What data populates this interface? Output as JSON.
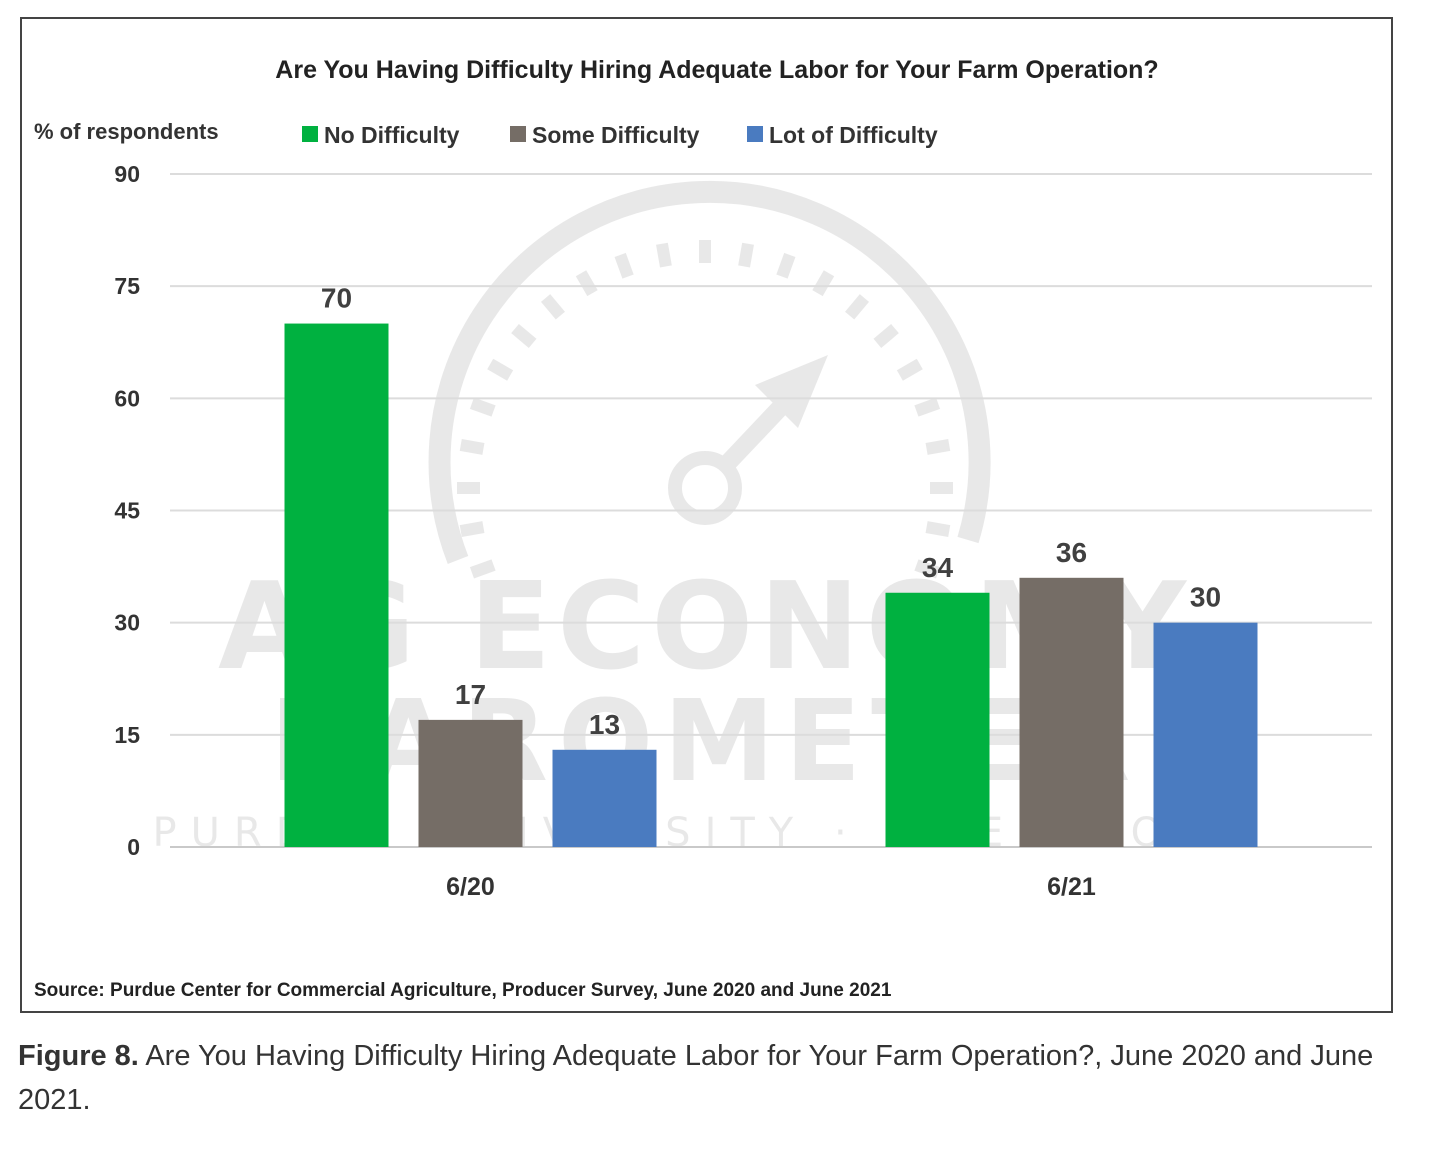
{
  "chart_data": {
    "type": "bar",
    "title": "Are You Having Difficulty Hiring Adequate Labor for Your Farm Operation?",
    "ylabel": "% of respondents",
    "xlabel": "",
    "categories": [
      "6/20",
      "6/21"
    ],
    "series": [
      {
        "name": "No Difficulty",
        "values": [
          70,
          34
        ],
        "color": "#00b140"
      },
      {
        "name": "Some Difficulty",
        "values": [
          17,
          36
        ],
        "color": "#756d66"
      },
      {
        "name": "Lot of Difficulty",
        "values": [
          13,
          30
        ],
        "color": "#4a7bc0"
      }
    ],
    "ylim": [
      0,
      90
    ],
    "yticks": [
      0,
      15,
      30,
      45,
      60,
      75,
      90
    ],
    "grid": true,
    "legend_position": "top",
    "source": "Source: Purdue Center for Commercial Agriculture, Producer Survey, June 2020 and June 2021"
  },
  "watermark": {
    "line1": "AG ECONOMY",
    "line2": "BAROMETER",
    "line3": "PURDUE UNIVERSITY · CME GROUP"
  },
  "caption": {
    "label": "Figure 8.",
    "text": "Are You Having Difficulty Hiring Adequate Labor for Your Farm Operation?, June 2020 and June 2021."
  }
}
